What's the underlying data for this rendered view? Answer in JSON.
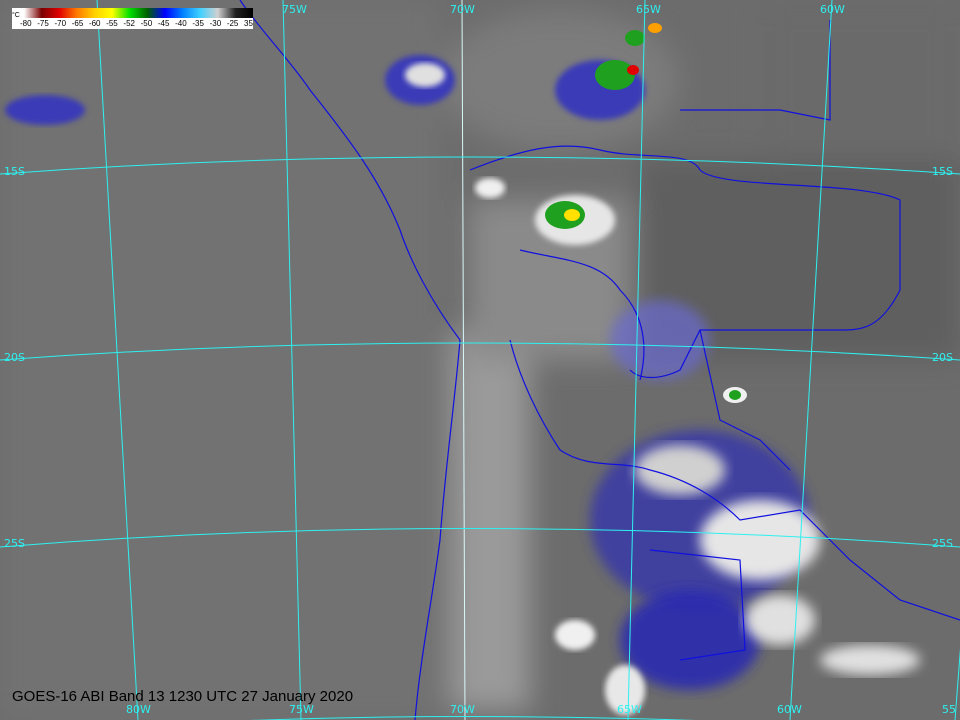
{
  "title": "GOES-16 ABI Band 13 1230 UTC 27 January 2020",
  "colorbar": {
    "unit": "°C",
    "ticks": [
      "-80",
      "-75",
      "-70",
      "-65",
      "-60",
      "-55",
      "-52",
      "-50",
      "-45",
      "-40",
      "-35",
      "-30",
      "-25",
      "35"
    ],
    "colors": [
      "#ffffff",
      "#7a0000",
      "#e00000",
      "#ff7a00",
      "#ffd000",
      "#ffff00",
      "#00e000",
      "#006000",
      "#0000ff",
      "#0080ff",
      "#40d0ff",
      "#d0d0d0",
      "#202020",
      "#000000"
    ]
  },
  "grid": {
    "line_color": "#2ef0f0",
    "top_labels": [
      "75W",
      "70W",
      "65W",
      "60W"
    ],
    "bottom_labels": [
      "80W",
      "75W",
      "70W",
      "65W",
      "60W",
      "55"
    ],
    "left_labels": [
      "15S",
      "20S",
      "25S"
    ],
    "right_labels": [
      "15S",
      "20S",
      "25S"
    ]
  },
  "boundary_color": "#1010e0"
}
